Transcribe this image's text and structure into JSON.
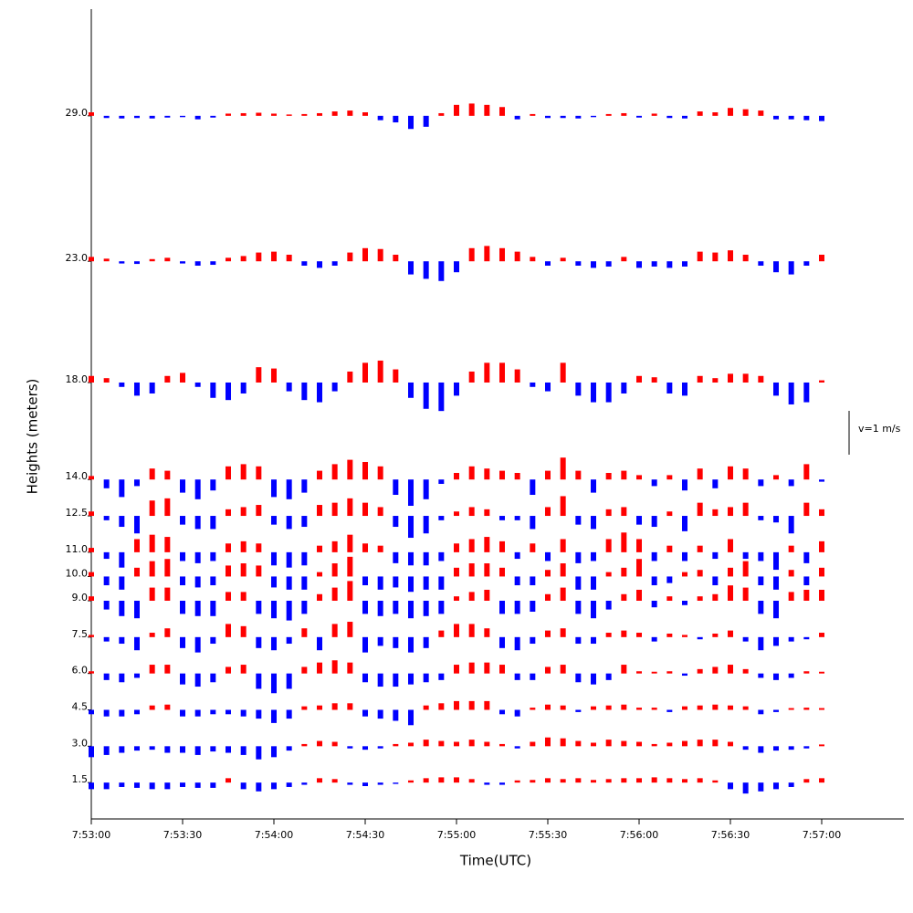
{
  "chart_data": {
    "type": "bar",
    "x_label": "Time(UTC)",
    "y_label": "Heights (meters)",
    "pos_color": "#ff0000",
    "neg_color": "#0000ff",
    "scale_bar": {
      "label": "v=1 m/s",
      "value": 1
    },
    "ylim": [
      0,
      33.4
    ],
    "yticks": [
      {
        "value": 1.5,
        "label": "1.5"
      },
      {
        "value": 3,
        "label": "3.0"
      },
      {
        "value": 4.5,
        "label": "4.5"
      },
      {
        "value": 6,
        "label": "6.0"
      },
      {
        "value": 7.5,
        "label": "7.5"
      },
      {
        "value": 9,
        "label": "9.0"
      },
      {
        "value": 10,
        "label": "10.0"
      },
      {
        "value": 11,
        "label": "11.0"
      },
      {
        "value": 12.5,
        "label": "12.5"
      },
      {
        "value": 14,
        "label": "14.0"
      },
      {
        "value": 18,
        "label": "18.0"
      },
      {
        "value": 23,
        "label": "23.0"
      },
      {
        "value": 29,
        "label": "29.0"
      }
    ],
    "xlim": [
      "7:53:00",
      "7:57:27"
    ],
    "xticks": [
      "7:53:00",
      "7:53:30",
      "7:54:00",
      "7:54:30",
      "7:55:00",
      "7:55:30",
      "7:56:00",
      "7:56:30",
      "7:57:00"
    ],
    "x": [
      "7:53:00",
      "7:53:05",
      "7:53:10",
      "7:53:15",
      "7:53:20",
      "7:53:25",
      "7:53:30",
      "7:53:35",
      "7:53:40",
      "7:53:45",
      "7:53:50",
      "7:53:55",
      "7:54:00",
      "7:54:05",
      "7:54:10",
      "7:54:15",
      "7:54:20",
      "7:54:25",
      "7:54:30",
      "7:54:35",
      "7:54:40",
      "7:54:45",
      "7:54:50",
      "7:54:55",
      "7:55:00",
      "7:55:05",
      "7:55:10",
      "7:55:15",
      "7:55:20",
      "7:55:25",
      "7:55:30",
      "7:55:35",
      "7:55:40",
      "7:55:45",
      "7:55:50",
      "7:55:55",
      "7:56:00",
      "7:56:05",
      "7:56:10",
      "7:56:15",
      "7:56:20",
      "7:56:25",
      "7:56:30",
      "7:56:35",
      "7:56:40",
      "7:56:45",
      "7:56:50",
      "7:56:55",
      "7:57:00"
    ],
    "series": [
      {
        "height": 29,
        "values": [
          0.08,
          -0.05,
          -0.06,
          -0.05,
          -0.06,
          -0.04,
          -0.03,
          -0.08,
          -0.04,
          0.05,
          0.06,
          0.07,
          0.05,
          0.03,
          0.04,
          0.06,
          0.1,
          0.12,
          0.08,
          -0.1,
          -0.15,
          -0.3,
          -0.25,
          0.06,
          0.25,
          0.28,
          0.25,
          0.2,
          -0.08,
          0.04,
          -0.05,
          -0.05,
          -0.06,
          -0.03,
          0.04,
          0.06,
          -0.04,
          0.05,
          -0.05,
          -0.06,
          0.1,
          0.08,
          0.18,
          0.15,
          0.12,
          -0.08,
          -0.08,
          -0.1,
          -0.12
        ]
      },
      {
        "height": 23,
        "values": [
          0.1,
          0.06,
          -0.05,
          -0.06,
          0.05,
          0.08,
          -0.05,
          -0.1,
          -0.08,
          0.08,
          0.12,
          0.2,
          0.22,
          0.15,
          -0.1,
          -0.15,
          -0.1,
          0.2,
          0.3,
          0.28,
          0.15,
          -0.3,
          -0.4,
          -0.45,
          -0.25,
          0.3,
          0.35,
          0.3,
          0.22,
          0.1,
          -0.1,
          0.08,
          -0.1,
          -0.15,
          -0.12,
          0.1,
          -0.15,
          -0.12,
          -0.15,
          -0.12,
          0.22,
          0.2,
          0.25,
          0.15,
          -0.1,
          -0.25,
          -0.3,
          -0.1,
          0.15
        ]
      },
      {
        "height": 18,
        "values": [
          0.15,
          0.1,
          -0.1,
          -0.3,
          -0.25,
          0.15,
          0.22,
          -0.1,
          -0.35,
          -0.4,
          -0.25,
          0.35,
          0.32,
          -0.2,
          -0.4,
          -0.45,
          -0.2,
          0.25,
          0.45,
          0.5,
          0.3,
          -0.35,
          -0.6,
          -0.65,
          -0.3,
          0.25,
          0.45,
          0.45,
          0.3,
          -0.1,
          -0.2,
          0.45,
          -0.3,
          -0.45,
          -0.45,
          -0.25,
          0.15,
          0.12,
          -0.25,
          -0.3,
          0.15,
          0.1,
          0.2,
          0.2,
          0.15,
          -0.3,
          -0.5,
          -0.45,
          0.05
        ]
      },
      {
        "height": 14,
        "values": [
          0.08,
          -0.2,
          -0.4,
          -0.15,
          0.25,
          0.2,
          -0.3,
          -0.45,
          -0.25,
          0.3,
          0.35,
          0.3,
          -0.4,
          -0.45,
          -0.3,
          0.2,
          0.35,
          0.45,
          0.4,
          0.3,
          -0.35,
          -0.6,
          -0.45,
          -0.1,
          0.15,
          0.3,
          0.25,
          0.2,
          0.15,
          -0.35,
          0.2,
          0.5,
          0.2,
          -0.3,
          0.15,
          0.2,
          0.1,
          -0.15,
          0.1,
          -0.25,
          0.25,
          -0.2,
          0.3,
          0.25,
          -0.15,
          0.1,
          -0.15,
          0.35,
          -0.05
        ]
      },
      {
        "height": 12.5,
        "values": [
          0.1,
          -0.1,
          -0.25,
          -0.4,
          0.35,
          0.4,
          -0.2,
          -0.3,
          -0.3,
          0.15,
          0.2,
          0.25,
          -0.2,
          -0.3,
          -0.25,
          0.25,
          0.3,
          0.4,
          0.3,
          0.2,
          -0.25,
          -0.5,
          -0.4,
          -0.1,
          0.1,
          0.2,
          0.15,
          -0.1,
          -0.1,
          -0.3,
          0.2,
          0.45,
          -0.2,
          -0.3,
          0.15,
          0.2,
          -0.2,
          -0.25,
          0.1,
          -0.35,
          0.3,
          0.15,
          0.2,
          0.3,
          -0.1,
          -0.15,
          -0.4,
          0.3,
          0.15
        ]
      },
      {
        "height": 11,
        "values": [
          0.1,
          -0.15,
          -0.35,
          0.3,
          0.4,
          0.35,
          -0.2,
          -0.25,
          -0.2,
          0.2,
          0.25,
          0.2,
          -0.3,
          -0.35,
          -0.3,
          0.15,
          0.25,
          0.4,
          0.2,
          0.15,
          -0.25,
          -0.3,
          -0.3,
          -0.2,
          0.2,
          0.3,
          0.35,
          0.25,
          -0.15,
          0.2,
          -0.2,
          0.3,
          -0.25,
          -0.2,
          0.3,
          0.45,
          0.3,
          -0.2,
          0.15,
          -0.2,
          0.15,
          -0.15,
          0.3,
          -0.15,
          -0.2,
          -0.4,
          0.15,
          -0.25,
          0.25
        ]
      },
      {
        "height": 10,
        "values": [
          0.1,
          -0.2,
          -0.3,
          0.2,
          0.35,
          0.4,
          -0.2,
          -0.25,
          -0.2,
          0.25,
          0.3,
          0.25,
          -0.25,
          -0.3,
          -0.3,
          0.1,
          0.3,
          0.45,
          -0.2,
          -0.3,
          -0.25,
          -0.35,
          -0.3,
          -0.3,
          0.2,
          0.3,
          0.3,
          0.2,
          -0.2,
          -0.2,
          0.15,
          0.3,
          -0.3,
          -0.3,
          0.1,
          0.2,
          0.4,
          -0.2,
          -0.15,
          0.1,
          0.15,
          -0.2,
          0.2,
          0.35,
          -0.2,
          -0.3,
          0.15,
          -0.2,
          0.2
        ]
      },
      {
        "height": 9,
        "values": [
          0.1,
          -0.2,
          -0.35,
          -0.4,
          0.3,
          0.3,
          -0.3,
          -0.35,
          -0.35,
          0.2,
          0.2,
          -0.3,
          -0.4,
          -0.45,
          -0.3,
          0.15,
          0.3,
          0.45,
          -0.3,
          -0.35,
          -0.3,
          -0.4,
          -0.35,
          -0.3,
          0.1,
          0.2,
          0.25,
          -0.3,
          -0.3,
          -0.25,
          0.15,
          0.3,
          -0.3,
          -0.4,
          -0.2,
          0.15,
          0.25,
          -0.15,
          0.1,
          -0.1,
          0.1,
          0.15,
          0.35,
          0.3,
          -0.3,
          -0.4,
          0.2,
          0.25,
          0.25
        ]
      },
      {
        "height": 7.5,
        "values": [
          0.05,
          -0.1,
          -0.15,
          -0.3,
          0.1,
          0.2,
          -0.25,
          -0.35,
          -0.15,
          0.3,
          0.25,
          -0.25,
          -0.3,
          -0.15,
          0.2,
          -0.3,
          0.3,
          0.35,
          -0.35,
          -0.2,
          -0.25,
          -0.35,
          -0.25,
          0.15,
          0.3,
          0.3,
          0.2,
          -0.25,
          -0.3,
          -0.15,
          0.15,
          0.2,
          -0.15,
          -0.15,
          0.1,
          0.15,
          0.1,
          -0.1,
          0.08,
          0.05,
          -0.05,
          0.08,
          0.15,
          -0.1,
          -0.3,
          -0.2,
          -0.1,
          -0.05,
          0.1
        ]
      },
      {
        "height": 6,
        "values": [
          0.05,
          -0.15,
          -0.2,
          -0.1,
          0.2,
          0.2,
          -0.25,
          -0.3,
          -0.2,
          0.15,
          0.2,
          -0.35,
          -0.45,
          -0.35,
          0.15,
          0.25,
          0.3,
          0.25,
          -0.2,
          -0.3,
          -0.3,
          -0.25,
          -0.2,
          -0.15,
          0.2,
          0.25,
          0.25,
          0.2,
          -0.15,
          -0.15,
          0.15,
          0.2,
          -0.2,
          -0.25,
          -0.15,
          0.2,
          0.05,
          0.04,
          0.05,
          -0.05,
          0.1,
          0.15,
          0.2,
          0.1,
          -0.1,
          -0.15,
          -0.1,
          0.05,
          0.04
        ]
      },
      {
        "height": 4.5,
        "values": [
          -0.1,
          -0.15,
          -0.15,
          -0.1,
          0.1,
          0.12,
          -0.15,
          -0.15,
          -0.1,
          -0.1,
          -0.15,
          -0.2,
          -0.3,
          -0.2,
          0.08,
          0.1,
          0.15,
          0.15,
          -0.15,
          -0.2,
          -0.25,
          -0.35,
          0.1,
          0.15,
          0.2,
          0.2,
          0.2,
          -0.1,
          -0.15,
          0.05,
          0.12,
          0.1,
          -0.05,
          0.08,
          0.1,
          0.12,
          0.05,
          0.05,
          -0.05,
          0.08,
          0.1,
          0.12,
          0.1,
          0.08,
          -0.1,
          -0.05,
          0.04,
          0.05,
          0.04
        ]
      },
      {
        "height": 3,
        "values": [
          -0.25,
          -0.2,
          -0.15,
          -0.1,
          -0.08,
          -0.15,
          -0.15,
          -0.2,
          -0.12,
          -0.15,
          -0.2,
          -0.3,
          -0.25,
          -0.1,
          0.05,
          0.12,
          0.1,
          -0.05,
          -0.08,
          -0.05,
          0.05,
          0.08,
          0.15,
          0.12,
          0.1,
          0.15,
          0.1,
          0.05,
          -0.05,
          0.1,
          0.2,
          0.18,
          0.12,
          0.08,
          0.15,
          0.12,
          0.1,
          0.05,
          0.08,
          0.12,
          0.15,
          0.15,
          0.1,
          -0.08,
          -0.15,
          -0.1,
          -0.08,
          -0.05,
          0.04
        ]
      },
      {
        "height": 1.5,
        "values": [
          -0.15,
          -0.15,
          -0.1,
          -0.12,
          -0.15,
          -0.15,
          -0.1,
          -0.12,
          -0.12,
          0.1,
          -0.15,
          -0.2,
          -0.15,
          -0.1,
          -0.05,
          0.1,
          0.08,
          -0.05,
          -0.08,
          -0.05,
          -0.03,
          0.05,
          0.1,
          0.12,
          0.12,
          0.08,
          -0.05,
          -0.05,
          0.05,
          0.06,
          0.1,
          0.08,
          0.1,
          0.06,
          0.08,
          0.1,
          0.1,
          0.12,
          0.1,
          0.08,
          0.1,
          0.05,
          -0.15,
          -0.25,
          -0.2,
          -0.15,
          -0.1,
          0.08,
          0.1
        ]
      }
    ]
  }
}
